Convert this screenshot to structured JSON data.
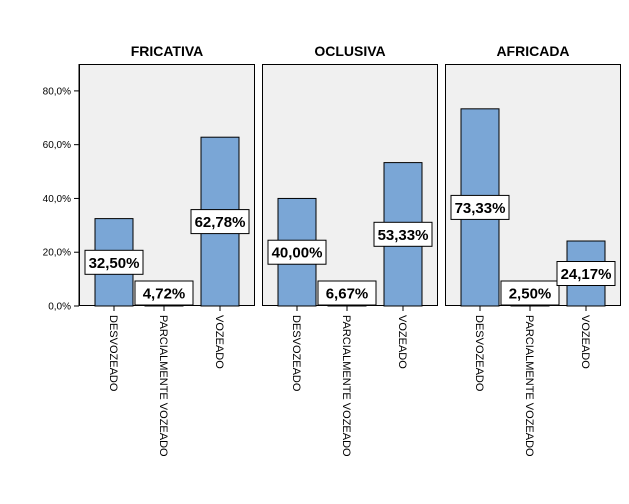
{
  "chart_data": {
    "type": "bar",
    "ylim": [
      0,
      90
    ],
    "yticks": [
      "0,0%",
      "20,0%",
      "40,0%",
      "60,0%",
      "80,0%"
    ],
    "ytick_values": [
      0,
      20,
      40,
      60,
      80
    ],
    "categories": [
      "DESVOZEADO",
      "PARCIALMENTE VOZEADO",
      "VOZEADO"
    ],
    "bar_color": "#7aa6d6",
    "panel_bg": "#f0f0f0",
    "grid": false,
    "panels": [
      {
        "title": "FRICATIVA",
        "values": [
          32.5,
          4.72,
          62.78
        ],
        "labels": [
          "32,50%",
          "4,72%",
          "62,78%"
        ]
      },
      {
        "title": "OCLUSIVA",
        "values": [
          40.0,
          6.67,
          53.33
        ],
        "labels": [
          "40,00%",
          "6,67%",
          "53,33%"
        ]
      },
      {
        "title": "AFRICADA",
        "values": [
          73.33,
          2.5,
          24.17
        ],
        "labels": [
          "73,33%",
          "2,50%",
          "24,17%"
        ]
      }
    ]
  }
}
